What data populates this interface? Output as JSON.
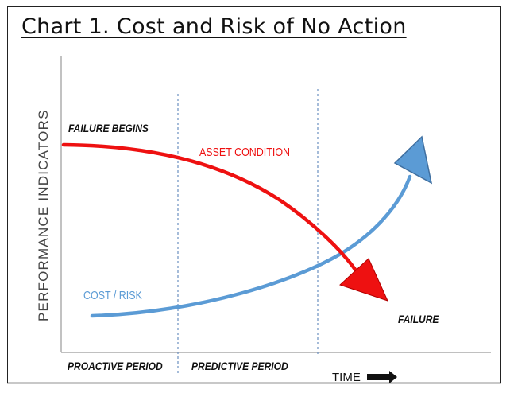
{
  "title": "Chart 1. Cost and Risk of No Action",
  "y_axis_label": "PERFORMANCE INDICATORS",
  "labels": {
    "failure_begins": "FAILURE BEGINS",
    "asset_condition": "ASSET CONDITION",
    "cost_risk": "COST / RISK",
    "failure": "FAILURE"
  },
  "periods": {
    "proactive": "PROACTIVE PERIOD",
    "predictive": "PREDICTIVE PERIOD"
  },
  "x_axis_label": "TIME",
  "colors": {
    "asset_condition": "#ee1111",
    "cost_risk": "#5b9bd5",
    "divider": "#6a8fc0",
    "axis": "#9a9a9a"
  }
}
